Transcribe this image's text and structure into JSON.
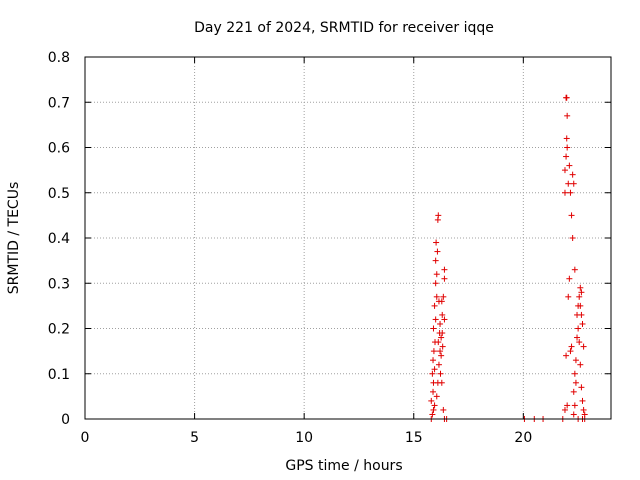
{
  "chart_data": {
    "type": "scatter",
    "title": "Day 221 of 2024, SRMTID for receiver iqqe",
    "xlabel": "GPS time / hours",
    "ylabel": "SRMTID / TECUs",
    "xlim": [
      0,
      24
    ],
    "ylim": [
      0,
      0.8
    ],
    "x_ticks": [
      0,
      5,
      10,
      15,
      20
    ],
    "x_tick_labels": [
      "0",
      "5",
      "10",
      "15",
      "20"
    ],
    "y_ticks": [
      0,
      0.1,
      0.2,
      0.3,
      0.4,
      0.5,
      0.6,
      0.7,
      0.8
    ],
    "y_tick_labels": [
      "0",
      "0.1",
      "0.2",
      "0.3",
      "0.4",
      "0.5",
      "0.6",
      "0.7",
      "0.8"
    ],
    "grid": true,
    "marker": "plus",
    "color": "#e00000",
    "series": [
      {
        "name": "SRMTID",
        "points": [
          [
            15.8,
            0.0
          ],
          [
            15.85,
            0.01
          ],
          [
            15.9,
            0.02
          ],
          [
            15.95,
            0.03
          ],
          [
            15.8,
            0.04
          ],
          [
            15.88,
            0.06
          ],
          [
            15.9,
            0.08
          ],
          [
            15.85,
            0.1
          ],
          [
            15.95,
            0.11
          ],
          [
            15.88,
            0.13
          ],
          [
            15.92,
            0.15
          ],
          [
            15.97,
            0.17
          ],
          [
            15.9,
            0.2
          ],
          [
            16.0,
            0.22
          ],
          [
            15.95,
            0.25
          ],
          [
            16.05,
            0.27
          ],
          [
            16.0,
            0.3
          ],
          [
            16.05,
            0.32
          ],
          [
            16.0,
            0.35
          ],
          [
            16.08,
            0.37
          ],
          [
            16.02,
            0.39
          ],
          [
            16.1,
            0.44
          ],
          [
            16.12,
            0.45
          ],
          [
            16.05,
            0.05
          ],
          [
            16.1,
            0.08
          ],
          [
            16.15,
            0.12
          ],
          [
            16.2,
            0.15
          ],
          [
            16.12,
            0.17
          ],
          [
            16.18,
            0.19
          ],
          [
            16.25,
            0.18
          ],
          [
            16.2,
            0.21
          ],
          [
            16.3,
            0.23
          ],
          [
            16.28,
            0.26
          ],
          [
            16.15,
            0.26
          ],
          [
            16.35,
            0.27
          ],
          [
            16.3,
            0.19
          ],
          [
            16.25,
            0.14
          ],
          [
            16.22,
            0.1
          ],
          [
            16.28,
            0.08
          ],
          [
            16.35,
            0.02
          ],
          [
            16.4,
            0.0
          ],
          [
            16.5,
            0.0
          ],
          [
            16.4,
            0.31
          ],
          [
            16.4,
            0.33
          ],
          [
            16.4,
            0.22
          ],
          [
            16.32,
            0.16
          ],
          [
            20.05,
            0.0
          ],
          [
            20.5,
            0.0
          ],
          [
            20.9,
            0.0
          ],
          [
            21.8,
            0.0
          ],
          [
            21.9,
            0.02
          ],
          [
            22.0,
            0.03
          ],
          [
            21.95,
            0.14
          ],
          [
            21.9,
            0.5
          ],
          [
            21.9,
            0.55
          ],
          [
            21.95,
            0.58
          ],
          [
            22.0,
            0.6
          ],
          [
            21.98,
            0.62
          ],
          [
            22.0,
            0.67
          ],
          [
            21.95,
            0.71
          ],
          [
            21.98,
            0.71
          ],
          [
            22.05,
            0.52
          ],
          [
            22.1,
            0.56
          ],
          [
            22.15,
            0.5
          ],
          [
            22.2,
            0.45
          ],
          [
            22.25,
            0.4
          ],
          [
            22.05,
            0.27
          ],
          [
            22.1,
            0.31
          ],
          [
            22.2,
            0.16
          ],
          [
            22.15,
            0.15
          ],
          [
            22.25,
            0.54
          ],
          [
            22.3,
            0.52
          ],
          [
            22.3,
            0.01
          ],
          [
            22.35,
            0.03
          ],
          [
            22.3,
            0.06
          ],
          [
            22.4,
            0.08
          ],
          [
            22.35,
            0.1
          ],
          [
            22.4,
            0.13
          ],
          [
            22.45,
            0.18
          ],
          [
            22.5,
            0.2
          ],
          [
            22.45,
            0.23
          ],
          [
            22.5,
            0.25
          ],
          [
            22.55,
            0.27
          ],
          [
            22.6,
            0.29
          ],
          [
            22.65,
            0.28
          ],
          [
            22.55,
            0.17
          ],
          [
            22.6,
            0.12
          ],
          [
            22.65,
            0.07
          ],
          [
            22.7,
            0.04
          ],
          [
            22.75,
            0.02
          ],
          [
            22.8,
            0.01
          ],
          [
            22.75,
            0.16
          ],
          [
            22.7,
            0.21
          ],
          [
            22.65,
            0.23
          ],
          [
            22.6,
            0.25
          ],
          [
            22.35,
            0.33
          ],
          [
            22.5,
            0.0
          ],
          [
            22.7,
            0.0
          ],
          [
            22.8,
            0.0
          ]
        ]
      }
    ]
  }
}
